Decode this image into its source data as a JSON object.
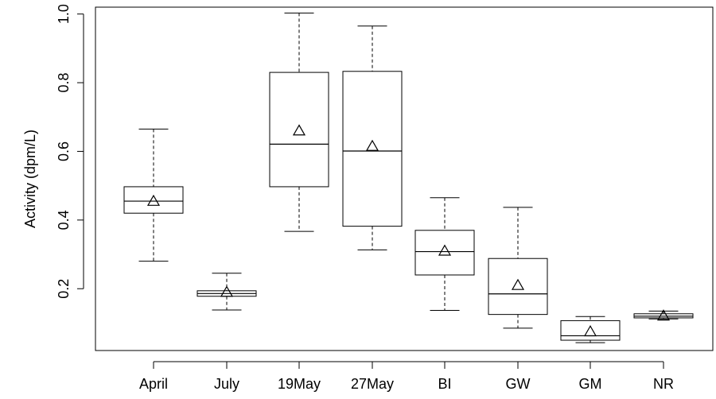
{
  "chart_data": {
    "type": "boxplot",
    "title": "",
    "xlabel": "",
    "ylabel": "Activity (dpm/L)",
    "ylim": [
      0.02,
      1.02
    ],
    "yticks": [
      0.2,
      0.4,
      0.6,
      0.8,
      1.0
    ],
    "ytick_labels": [
      "0.2",
      "0.4",
      "0.6",
      "0.8",
      "1.0"
    ],
    "grid": false,
    "mean_marker": "triangle",
    "categories": [
      "April",
      "July",
      "19May",
      "27May",
      "BI",
      "GW",
      "GM",
      "NR"
    ],
    "boxes": [
      {
        "label": "April",
        "min": 0.28,
        "q1": 0.42,
        "median": 0.455,
        "q3": 0.497,
        "max": 0.665,
        "mean": 0.455
      },
      {
        "label": "July",
        "min": 0.138,
        "q1": 0.178,
        "median": 0.186,
        "q3": 0.194,
        "max": 0.245,
        "mean": 0.19
      },
      {
        "label": "19May",
        "min": 0.367,
        "q1": 0.497,
        "median": 0.621,
        "q3": 0.83,
        "max": 1.003,
        "mean": 0.66
      },
      {
        "label": "27May",
        "min": 0.313,
        "q1": 0.382,
        "median": 0.601,
        "q3": 0.833,
        "max": 0.965,
        "mean": 0.615
      },
      {
        "label": "BI",
        "min": 0.137,
        "q1": 0.24,
        "median": 0.308,
        "q3": 0.37,
        "max": 0.465,
        "mean": 0.31
      },
      {
        "label": "GW",
        "min": 0.085,
        "q1": 0.125,
        "median": 0.185,
        "q3": 0.288,
        "max": 0.437,
        "mean": 0.21
      },
      {
        "label": "GM",
        "min": 0.043,
        "q1": 0.05,
        "median": 0.063,
        "q3": 0.107,
        "max": 0.119,
        "mean": 0.075
      },
      {
        "label": "NR",
        "min": 0.112,
        "q1": 0.115,
        "median": 0.12,
        "q3": 0.127,
        "max": 0.135,
        "mean": 0.121
      }
    ]
  }
}
